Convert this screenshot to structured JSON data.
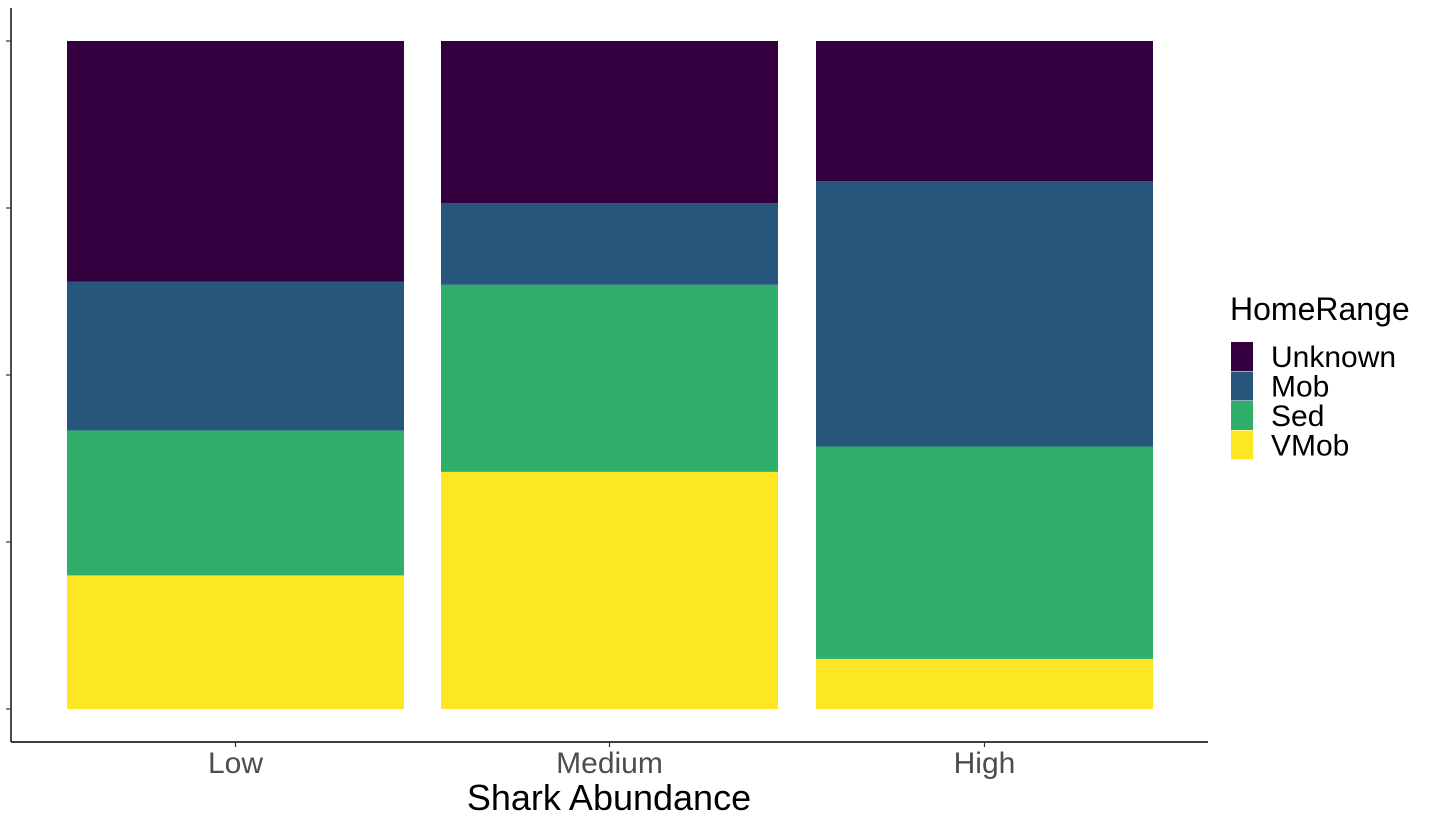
{
  "chart_data": {
    "type": "bar",
    "stacked": true,
    "normalized": true,
    "xlabel": "Shark Abundance",
    "ylabel": "",
    "ylim": [
      0,
      1
    ],
    "y_ticks": [
      0,
      0.25,
      0.5,
      0.75,
      1.0
    ],
    "y_tick_labels_visible": false,
    "grid": false,
    "legend_position": "right",
    "categories": [
      "Low",
      "Medium",
      "High"
    ],
    "legend_title": "HomeRange",
    "stack_order_top_to_bottom": [
      "Unknown",
      "Mob",
      "Sed",
      "VMob"
    ],
    "series": [
      {
        "name": "VMob",
        "color": "#FDE725",
        "values": [
          0.2,
          0.355,
          0.075
        ]
      },
      {
        "name": "Sed",
        "color": "#2FAF6A",
        "values": [
          0.217,
          0.28,
          0.318
        ]
      },
      {
        "name": "Mob",
        "color": "#27567D",
        "values": [
          0.223,
          0.122,
          0.397
        ]
      },
      {
        "name": "Unknown",
        "color": "#35003F",
        "values": [
          0.36,
          0.243,
          0.21
        ]
      }
    ]
  }
}
